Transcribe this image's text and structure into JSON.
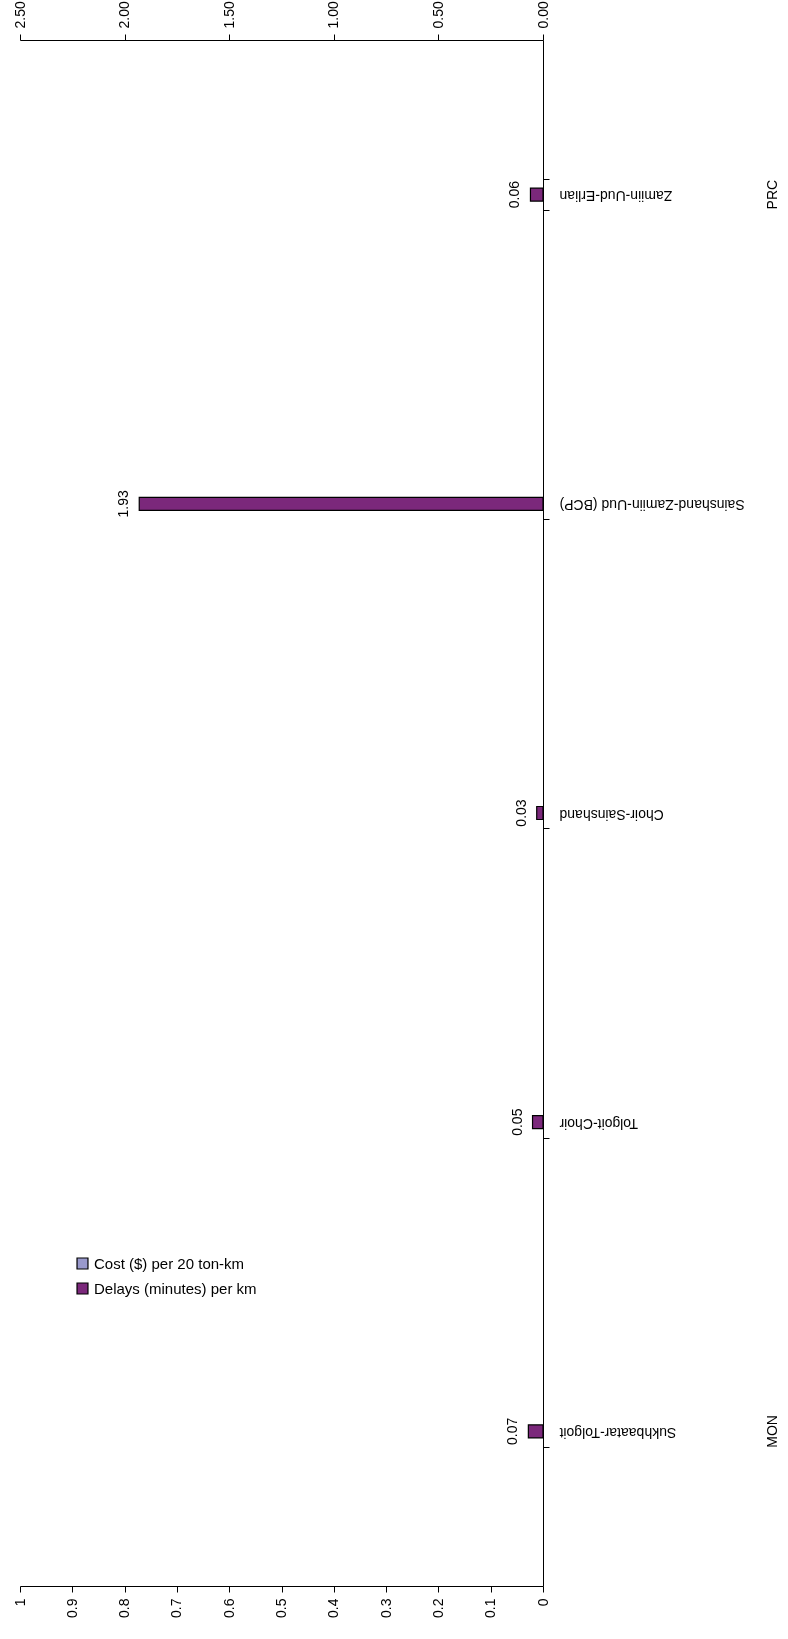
{
  "chart_data": {
    "type": "bar",
    "orientation": "horizontal",
    "categories": [
      "Zamiin-Uud-Erlian",
      "Sainshand-Zamiin-Uud (BCP)",
      "Choir-Sainshand",
      "Tolgoit-Choir",
      "Sukhbaatar-Tolgoit"
    ],
    "series": [
      {
        "name": "Cost ($) per 20 ton-km",
        "color": "#9999cc",
        "values": [
          null,
          null,
          null,
          null,
          null
        ]
      },
      {
        "name": "Delays (minutes) per km",
        "color": "#7b287b",
        "axis": "x2",
        "values": [
          0.06,
          1.93,
          0.03,
          0.05,
          0.07
        ]
      }
    ],
    "xlim": [
      1,
      0
    ],
    "xticks": [
      0,
      0.1,
      0.2,
      0.3,
      0.4,
      0.5,
      0.6,
      0.7,
      0.8,
      0.9,
      1
    ],
    "x2lim": [
      2.5,
      0
    ],
    "x2ticks": [
      {
        "value": 2.5,
        "label": "2.50"
      },
      {
        "value": 2,
        "label": "2.00"
      },
      {
        "value": 1.5,
        "label": "1.50"
      },
      {
        "value": 1,
        "label": "1.00"
      },
      {
        "value": 0.5,
        "label": "0.50"
      },
      {
        "value": 0,
        "label": "0.00"
      }
    ],
    "annotations": [
      "MON",
      "PRC"
    ],
    "data_labels": true,
    "legend": "bottom left"
  }
}
